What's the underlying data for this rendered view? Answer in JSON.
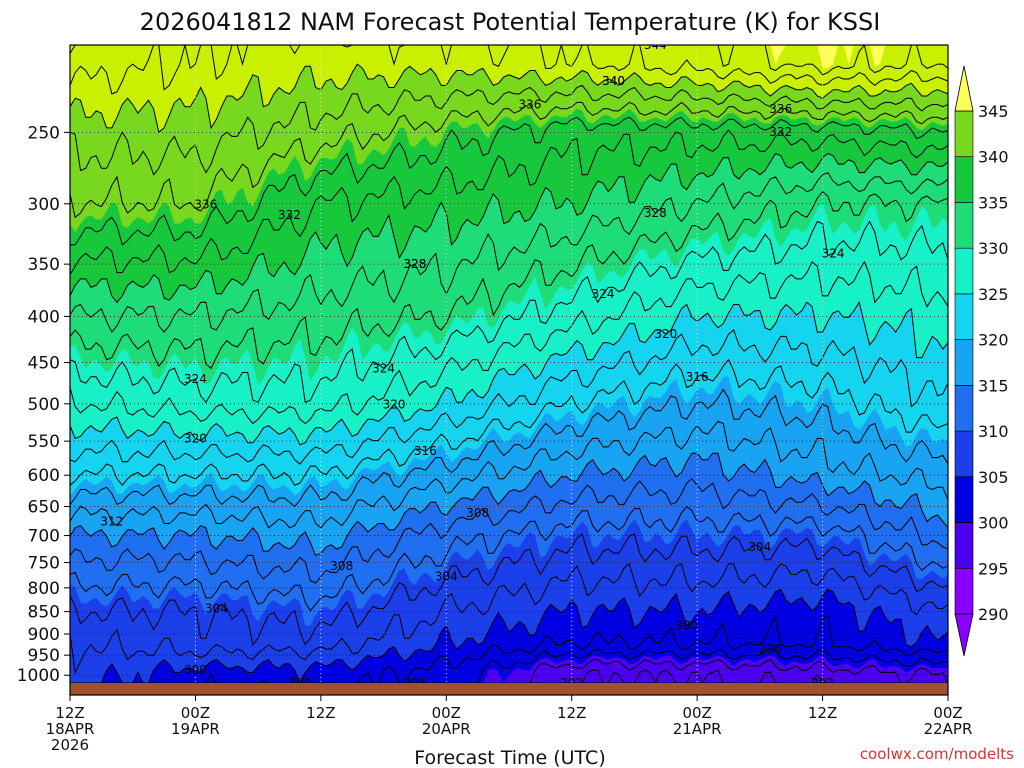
{
  "chart_data": {
    "type": "contour",
    "title": "2026041812 NAM Forecast Potential Temperature (K) for KSSI",
    "xlabel": "Forecast Time (UTC)",
    "ylabel": "",
    "y_axis": {
      "scale": "log-pressure",
      "range_hpa": [
        200,
        1020
      ],
      "tick_values": [
        250,
        300,
        350,
        400,
        450,
        500,
        550,
        600,
        650,
        700,
        750,
        800,
        850,
        900,
        950,
        1000
      ],
      "tick_labels": [
        "250",
        "300",
        "350",
        "400",
        "450",
        "500",
        "550",
        "600",
        "650",
        "700",
        "750",
        "800",
        "850",
        "900",
        "950",
        "1000"
      ]
    },
    "x_axis": {
      "range_hours": [
        0,
        84
      ],
      "ticks": [
        {
          "hour": 0,
          "line1": "12Z",
          "line2": "18APR",
          "line3": "2026"
        },
        {
          "hour": 12,
          "line1": "00Z",
          "line2": "19APR",
          "line3": ""
        },
        {
          "hour": 24,
          "line1": "12Z",
          "line2": "",
          "line3": ""
        },
        {
          "hour": 36,
          "line1": "00Z",
          "line2": "20APR",
          "line3": ""
        },
        {
          "hour": 48,
          "line1": "12Z",
          "line2": "",
          "line3": ""
        },
        {
          "hour": 60,
          "line1": "00Z",
          "line2": "21APR",
          "line3": ""
        },
        {
          "hour": 72,
          "line1": "12Z",
          "line2": "",
          "line3": ""
        },
        {
          "hour": 84,
          "line1": "00Z",
          "line2": "22APR",
          "line3": ""
        }
      ]
    },
    "colorbar": {
      "levels": [
        290,
        295,
        300,
        305,
        310,
        315,
        320,
        325,
        330,
        335,
        340,
        345
      ],
      "labels": [
        "290",
        "295",
        "300",
        "305",
        "310",
        "315",
        "320",
        "325",
        "330",
        "335",
        "340",
        "345"
      ],
      "colors": [
        "#8a00ff",
        "#4d00f0",
        "#0000e0",
        "#1b3fe8",
        "#1f6ff0",
        "#18a4f2",
        "#14d4f0",
        "#18f0c8",
        "#1edc78",
        "#18c83c",
        "#78d81e",
        "#c8f000",
        "#ffff5a"
      ]
    },
    "contour_interval_k": 2,
    "approx_theta_k": {
      "pressure_hpa": [
        1000,
        925,
        850,
        700,
        600,
        500,
        400,
        300,
        250,
        210
      ],
      "hours": [
        0,
        12,
        24,
        36,
        48,
        60,
        72,
        84
      ],
      "values": [
        [
          301,
          299,
          299,
          297,
          292,
          292,
          293,
          294
        ],
        [
          302,
          303,
          303,
          300,
          298,
          298,
          298,
          300
        ],
        [
          304,
          304,
          305,
          302,
          300,
          300,
          299,
          302
        ],
        [
          310,
          310,
          311,
          307,
          305,
          305,
          305,
          309
        ],
        [
          316,
          316,
          316,
          313,
          310,
          309,
          311,
          313
        ],
        [
          322,
          323,
          323,
          320,
          316,
          314,
          315,
          318
        ],
        [
          328,
          328,
          327,
          326,
          323,
          320,
          320,
          321
        ],
        [
          336,
          336,
          332,
          331,
          330,
          328,
          326,
          326
        ],
        [
          339,
          339,
          337,
          335,
          333,
          333,
          333,
          334
        ],
        [
          343,
          342,
          341,
          341,
          342,
          343,
          345,
          344
        ]
      ]
    },
    "contour_labels": [
      "344",
      "340",
      "336",
      "340",
      "336",
      "336",
      "332",
      "324",
      "328",
      "332",
      "328",
      "324",
      "328",
      "320",
      "316",
      "324",
      "324",
      "320",
      "320",
      "316",
      "308",
      "312",
      "304",
      "308",
      "304",
      "304",
      "300",
      "300",
      "296",
      "296",
      "292",
      "300",
      "292"
    ],
    "source_label": "coolwx.com/modelts"
  }
}
